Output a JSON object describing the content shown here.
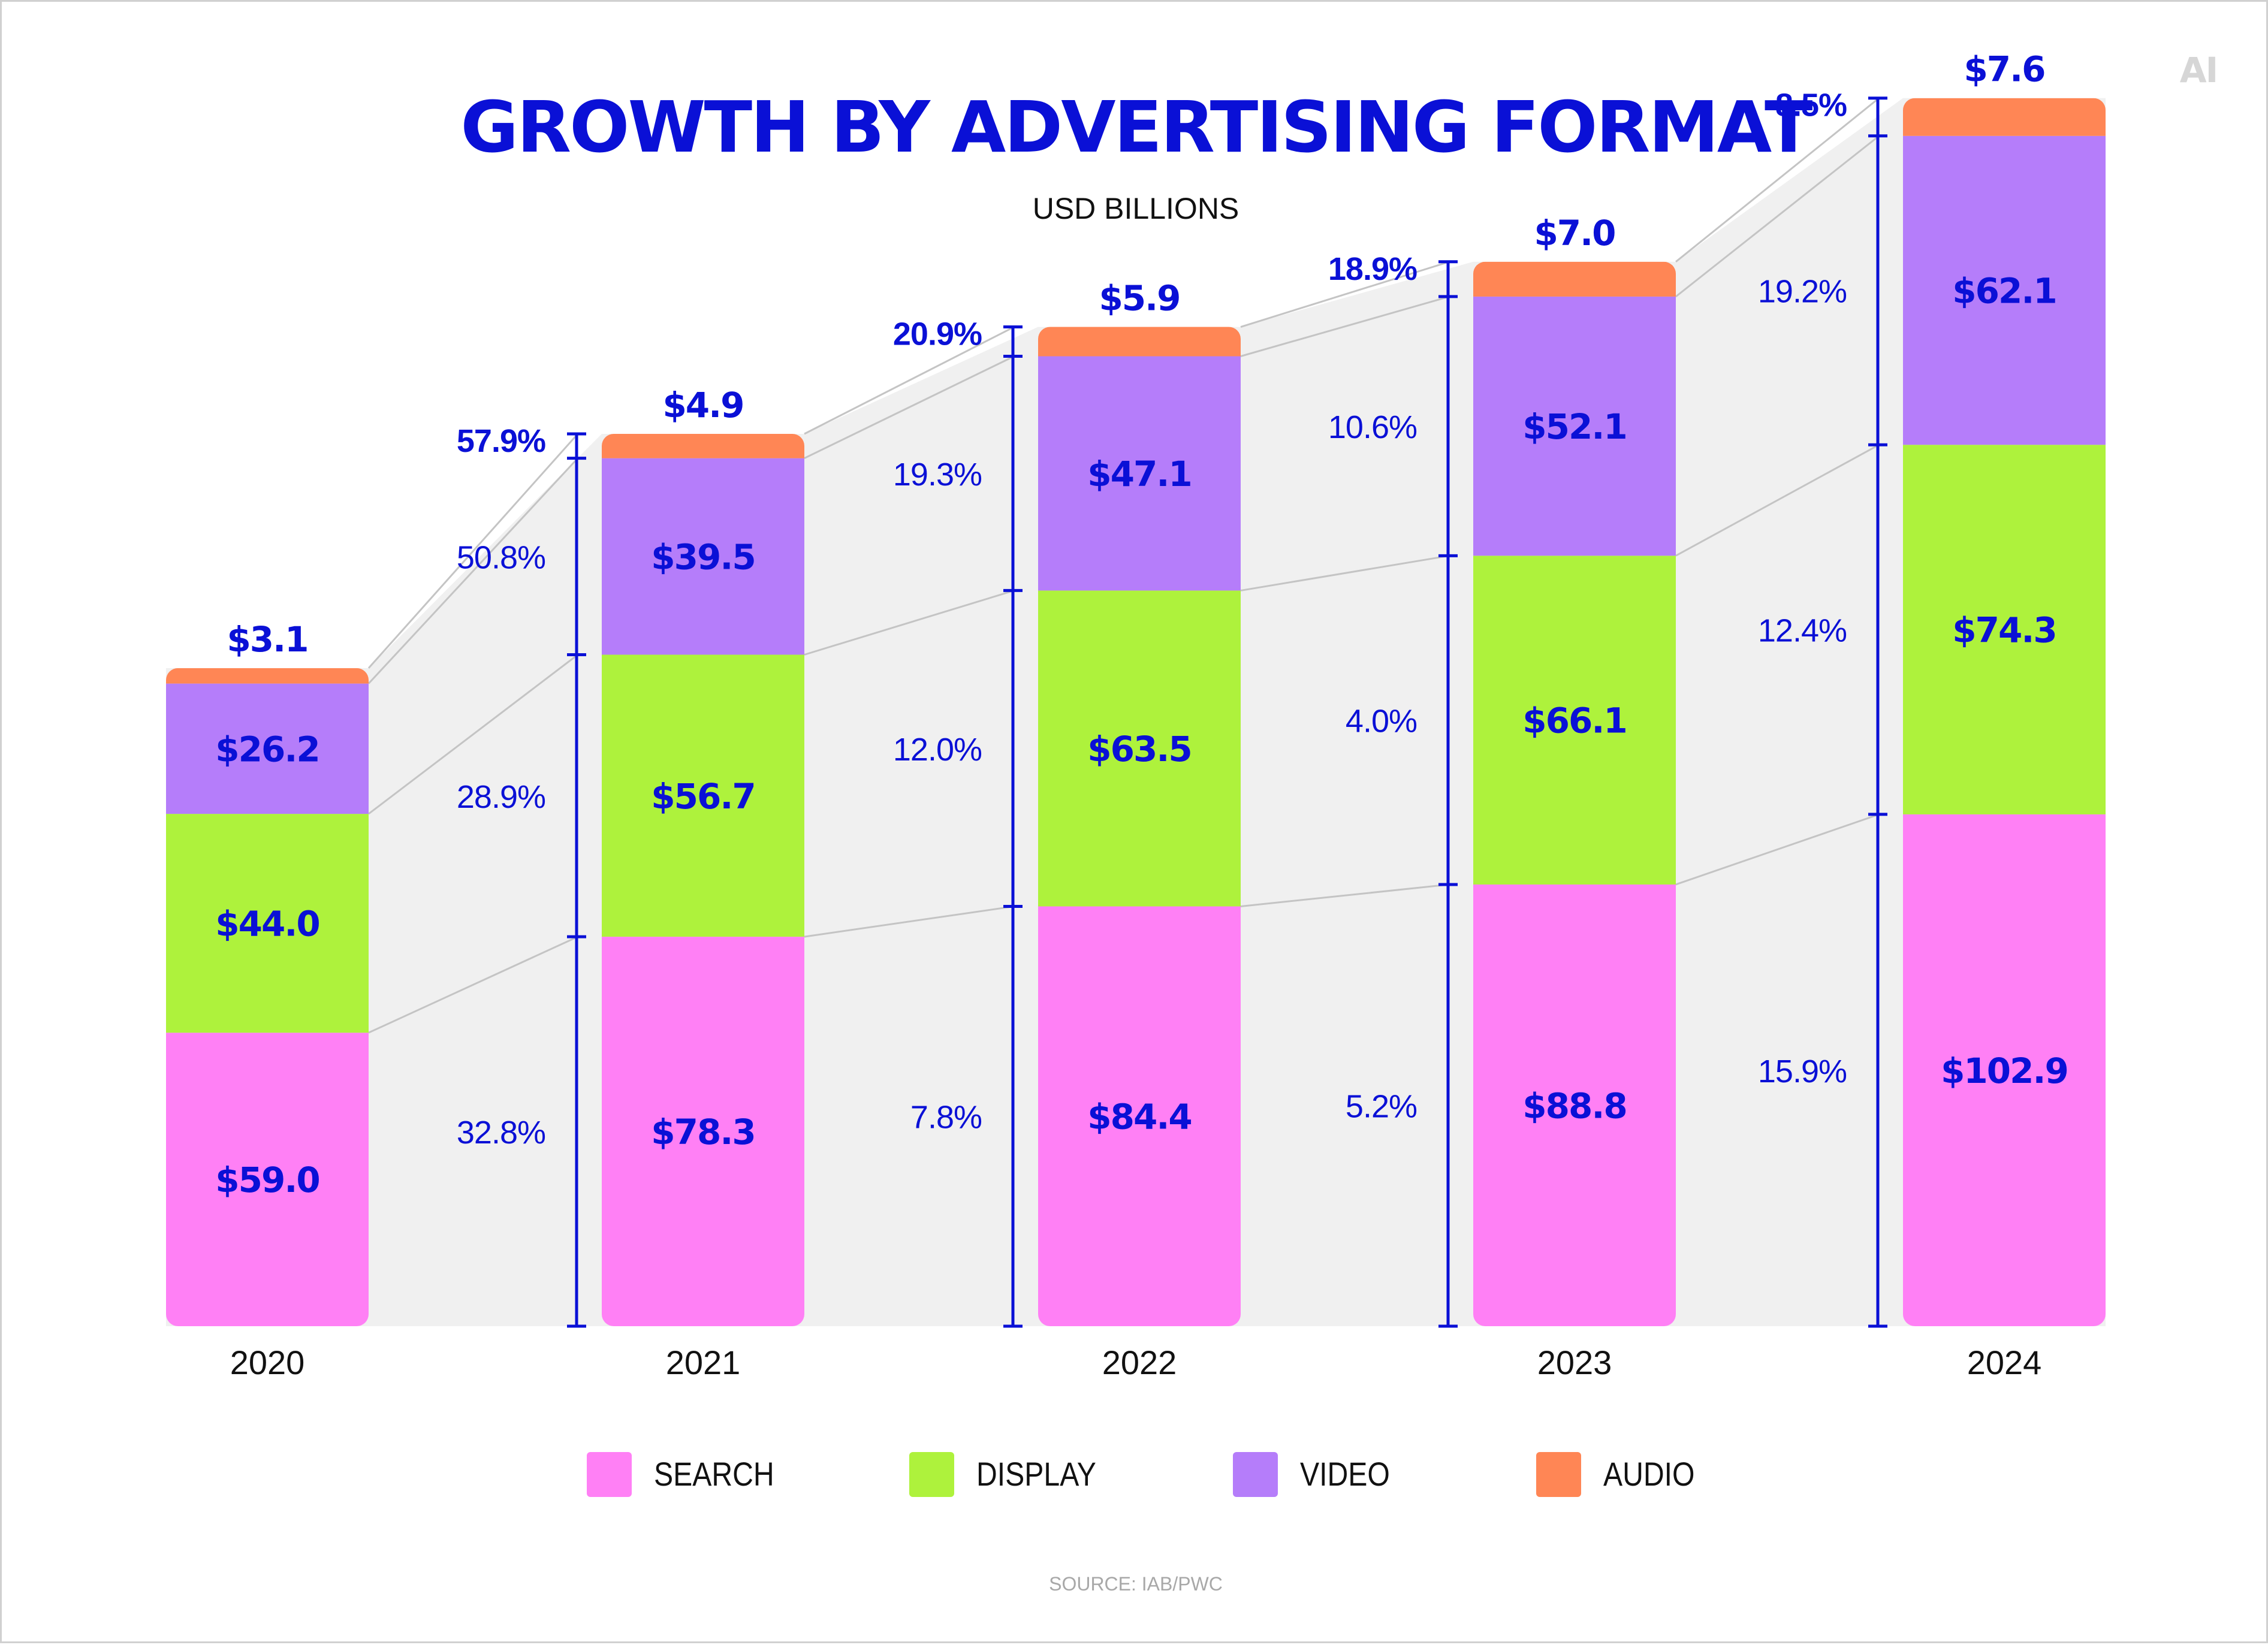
{
  "logo_text": "AI",
  "chart_data": {
    "type": "bar",
    "stacked": true,
    "title": "GROWTH BY ADVERTISING FORMAT",
    "subtitle": "USD BILLIONS",
    "xlabel": "",
    "ylabel": "",
    "categories": [
      "2020",
      "2021",
      "2022",
      "2023",
      "2024"
    ],
    "series": [
      {
        "name": "SEARCH",
        "color": "#ff80f5",
        "values": [
          59.0,
          78.3,
          84.4,
          88.8,
          102.9
        ],
        "labels": [
          "$59.0",
          "$78.3",
          "$84.4",
          "$88.8",
          "$102.9"
        ]
      },
      {
        "name": "DISPLAY",
        "color": "#aef23c",
        "values": [
          44.0,
          56.7,
          63.5,
          66.1,
          74.3
        ],
        "labels": [
          "$44.0",
          "$56.7",
          "$63.5",
          "$66.1",
          "$74.3"
        ]
      },
      {
        "name": "VIDEO",
        "color": "#b57dfa",
        "values": [
          26.2,
          39.5,
          47.1,
          52.1,
          62.1
        ],
        "labels": [
          "$26.2",
          "$39.5",
          "$47.1",
          "$52.1",
          "$62.1"
        ]
      },
      {
        "name": "AUDIO",
        "color": "#ff8655",
        "values": [
          3.1,
          4.9,
          5.9,
          7.0,
          7.6
        ],
        "labels": [
          "$3.1",
          "$4.9",
          "$5.9",
          "$7.0",
          "$7.6"
        ]
      }
    ],
    "growth_rates": [
      {
        "period": "2020-2021",
        "SEARCH": "32.8%",
        "DISPLAY": "28.9%",
        "VIDEO": "50.8%",
        "AUDIO": "57.9%"
      },
      {
        "period": "2021-2022",
        "SEARCH": "7.8%",
        "DISPLAY": "12.0%",
        "VIDEO": "19.3%",
        "AUDIO": "20.9%"
      },
      {
        "period": "2022-2023",
        "SEARCH": "5.2%",
        "DISPLAY": "4.0%",
        "VIDEO": "10.6%",
        "AUDIO": "18.9%"
      },
      {
        "period": "2023-2024",
        "SEARCH": "15.9%",
        "DISPLAY": "12.4%",
        "VIDEO": "19.2%",
        "AUDIO": "8.5%"
      }
    ],
    "legend_position": "bottom",
    "grid": false,
    "source": "SOURCE: IAB/PWC"
  }
}
